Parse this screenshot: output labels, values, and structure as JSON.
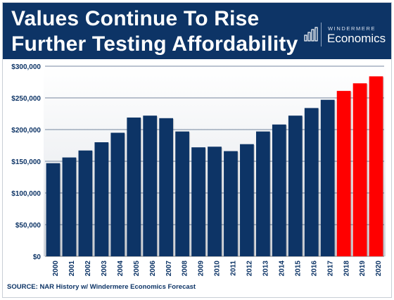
{
  "header": {
    "title_line1": "Values Continue To Rise",
    "title_line2": "Further Testing Affordability",
    "logo_top": "WINDERMERE",
    "logo_main": "Economics"
  },
  "source": "SOURCE: NAR History w/ Windermere Economics Forecast",
  "colors": {
    "header_bg": "#0d3466",
    "historical_bar": "#0d3466",
    "forecast_bar": "#ff0000"
  },
  "chart_data": {
    "type": "bar",
    "categories": [
      "2000",
      "2001",
      "2002",
      "2003",
      "2004",
      "2005",
      "2006",
      "2007",
      "2008",
      "2009",
      "2010",
      "2011",
      "2012",
      "2013",
      "2014",
      "2015",
      "2016",
      "2017",
      "2018",
      "2019",
      "2020"
    ],
    "series": [
      {
        "values": [
          147000,
          156000,
          167000,
          180000,
          195000,
          219000,
          222000,
          218000,
          197000,
          172000,
          173000,
          166000,
          177000,
          197000,
          208000,
          222000,
          234000,
          247000,
          261000,
          273000,
          284000
        ]
      }
    ],
    "forecast_from": "2018",
    "ylim": [
      0,
      300000
    ],
    "yticks": [
      0,
      50000,
      100000,
      150000,
      200000,
      250000,
      300000
    ],
    "ytick_labels": [
      "$0",
      "$50,000",
      "$100,000",
      "$150,000",
      "$200,000",
      "$250,000",
      "$300,000"
    ],
    "grid": true,
    "title": "",
    "xlabel": "",
    "ylabel": ""
  }
}
